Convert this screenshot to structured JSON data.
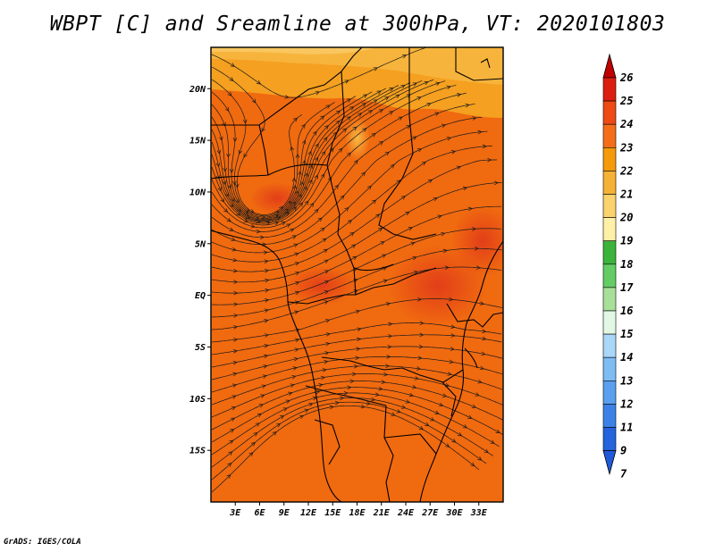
{
  "title": "WBPT [C] and Sreamline at 300hPa, VT: 2020101803",
  "footer": "GrADS: IGES/COLA",
  "map": {
    "lon_range": [
      0,
      36
    ],
    "lat_range": [
      -20,
      24
    ],
    "lat_labels": [
      "20N",
      "15N",
      "10N",
      "5N",
      "EQ",
      "5S",
      "10S",
      "15S"
    ],
    "lat_values": [
      20,
      15,
      10,
      5,
      0,
      -5,
      -10,
      -15
    ],
    "lon_labels": [
      "3E",
      "6E",
      "9E",
      "12E",
      "15E",
      "18E",
      "21E",
      "24E",
      "27E",
      "30E",
      "33E"
    ],
    "lon_values": [
      3,
      6,
      9,
      12,
      15,
      18,
      21,
      24,
      27,
      30,
      33
    ],
    "background_fill_color": "#f06a10"
  },
  "colorbar": {
    "labels": [
      "26",
      "25",
      "24",
      "23",
      "22",
      "21",
      "20",
      "19",
      "18",
      "17",
      "16",
      "15",
      "14",
      "13",
      "12",
      "11",
      "9",
      "7"
    ],
    "colors": [
      "#c00000",
      "#dc1e10",
      "#ee4a14",
      "#f46e1a",
      "#f59a0a",
      "#f5b236",
      "#fad26e",
      "#fef0a6",
      "#3cb43c",
      "#64cc64",
      "#a8e09a",
      "#e2f8e4",
      "#aad6f8",
      "#7ebcf4",
      "#5aa0ee",
      "#3c82e6",
      "#2464dc"
    ]
  }
}
